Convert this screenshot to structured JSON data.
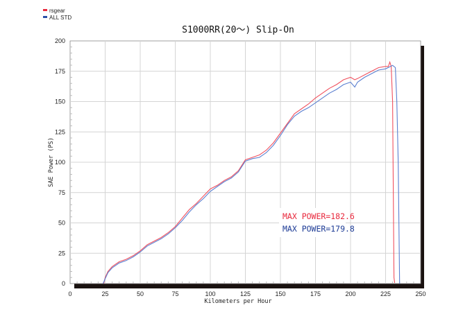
{
  "chart_data": {
    "type": "line",
    "title": "S1000RR(20～) Slip-On",
    "xlabel": "Kilometers per Hour",
    "ylabel": "SAE Power (PS)",
    "xlim": [
      0,
      250
    ],
    "ylim": [
      0,
      200
    ],
    "xticks": [
      0,
      25,
      50,
      75,
      100,
      125,
      150,
      175,
      200,
      225,
      250
    ],
    "yticks": [
      0,
      25,
      50,
      75,
      100,
      125,
      150,
      175,
      200
    ],
    "grid": true,
    "legend": {
      "placement": "top-left",
      "entries": [
        "rsgear",
        "ALL STD"
      ]
    },
    "series": [
      {
        "name": "rsgear",
        "color": "#f0505e",
        "x": [
          24,
          25,
          27,
          30,
          35,
          40,
          45,
          50,
          55,
          60,
          65,
          70,
          75,
          80,
          85,
          90,
          95,
          100,
          105,
          110,
          115,
          120,
          125,
          130,
          135,
          140,
          145,
          150,
          155,
          160,
          165,
          170,
          175,
          180,
          185,
          190,
          195,
          200,
          203,
          205,
          210,
          215,
          220,
          225,
          227,
          228,
          229,
          230,
          231,
          231.5
        ],
        "y": [
          0,
          5,
          10,
          14,
          18,
          20,
          23,
          27,
          32,
          35,
          38,
          42,
          47,
          54,
          61,
          66,
          72,
          78,
          81,
          85,
          88,
          93,
          102,
          104,
          106,
          110,
          116,
          124,
          132,
          140,
          144,
          148,
          153,
          157,
          161,
          164,
          168,
          170,
          168,
          169,
          172,
          175,
          178,
          179,
          179,
          182.6,
          179,
          150,
          5,
          0.5
        ]
      },
      {
        "name": "ALL STD",
        "color": "#5b7fd0",
        "x": [
          23.5,
          25,
          27,
          30,
          35,
          40,
          45,
          50,
          55,
          60,
          65,
          70,
          75,
          80,
          85,
          90,
          95,
          100,
          105,
          110,
          115,
          120,
          125,
          130,
          135,
          140,
          145,
          150,
          155,
          160,
          165,
          170,
          175,
          180,
          185,
          190,
          195,
          200,
          203,
          205,
          210,
          215,
          220,
          225,
          230,
          232,
          233,
          234,
          235
        ],
        "y": [
          0,
          4,
          9,
          13,
          17,
          19,
          22,
          26,
          31,
          34,
          37,
          41,
          46,
          52,
          59,
          65,
          70,
          76,
          80,
          84,
          87,
          92,
          101,
          103,
          104,
          108,
          114,
          122,
          131,
          138,
          142,
          145,
          149,
          153,
          157,
          160,
          164,
          166,
          162,
          166,
          170,
          173,
          176,
          177,
          179.8,
          178,
          150,
          100,
          0
        ]
      }
    ],
    "annotations": [
      {
        "text": "MAX POWER=182.6",
        "color": "#e8283c"
      },
      {
        "text": "MAX POWER=179.8",
        "color": "#1e3c96"
      }
    ]
  }
}
